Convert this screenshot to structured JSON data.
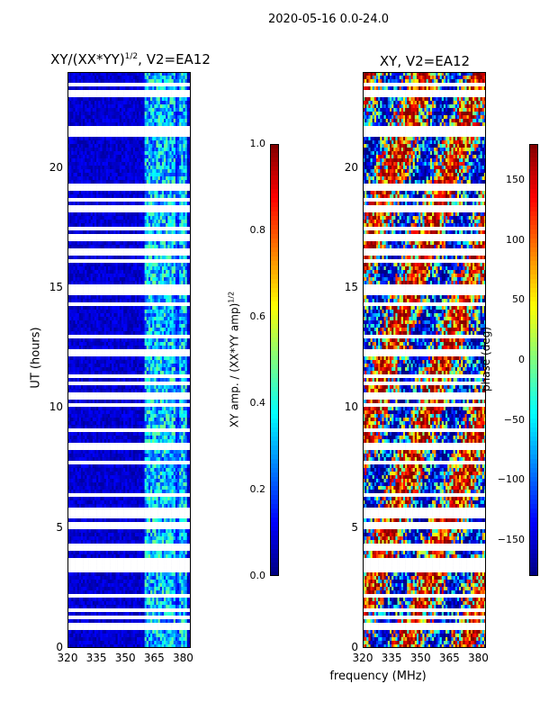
{
  "figure": {
    "suptitle": "2020-05-16 0.0-24.0",
    "xlabel": "frequency (MHz)"
  },
  "chart_data": [
    {
      "type": "heatmap",
      "title": "XY/(XX*YY)",
      "title_exponent": "1/2",
      "title_suffix": ", V2=EA12",
      "xlabel": "frequency (MHz)",
      "ylabel": "UT (hours)",
      "xlim": [
        320,
        384
      ],
      "ylim": [
        0,
        24
      ],
      "xticks": [
        "320",
        "335",
        "350",
        "365",
        "380"
      ],
      "yticks": [
        "0",
        "5",
        "10",
        "15",
        "20"
      ],
      "colorbar": {
        "label_prefix": "XY amp. / (XX*YY amp)",
        "label_exponent": "1/2",
        "vmin": 0.0,
        "vmax": 1.0,
        "ticks": [
          "0.0",
          "0.2",
          "0.4",
          "0.6",
          "0.8",
          "1.0"
        ],
        "colormap": "jet"
      },
      "notes": "Low amplitude (~0.0-0.15) below 360 MHz; elevated amplitude (~0.2-0.6) in 360-380 MHz band; horizontal white gaps of flagged data."
    },
    {
      "type": "heatmap",
      "title": "XY, V2=EA12",
      "xlabel": "frequency (MHz)",
      "ylabel": "",
      "xlim": [
        320,
        384
      ],
      "ylim": [
        0,
        24
      ],
      "xticks": [
        "320",
        "335",
        "350",
        "365",
        "380"
      ],
      "yticks": [
        "0",
        "5",
        "10",
        "15",
        "20"
      ],
      "colorbar": {
        "label": "phase (deg)",
        "vmin": -180,
        "vmax": 180,
        "ticks": [
          "−150",
          "−100",
          "−50",
          "0",
          "50",
          "100",
          "150"
        ],
        "colormap": "jet"
      },
      "notes": "Phase values spanning the full -180 to 180 deg range with patchy structure; horizontal white gaps of flagged data."
    }
  ],
  "colors": {
    "jet": [
      "#00007f",
      "#0000ff",
      "#007fff",
      "#00ffff",
      "#7fff7f",
      "#ffff00",
      "#ff7f00",
      "#ff0000",
      "#7f0000"
    ],
    "background": "#ffffff"
  }
}
